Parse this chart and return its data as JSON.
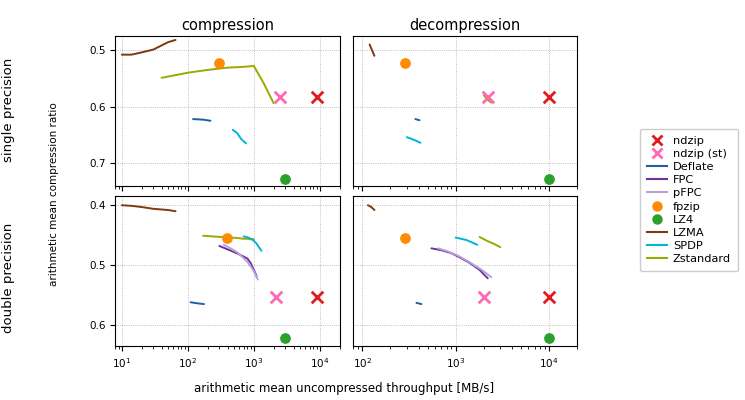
{
  "colors": {
    "ndzip": "#e31a1c",
    "ndzip_st": "#ff69b4",
    "Deflate": "#1f5fa6",
    "FPC": "#7030a0",
    "pFPC": "#b8a0d8",
    "fpzip": "#ff8c00",
    "LZ4": "#2ca02c",
    "LZMA": "#7b3a10",
    "SPDP": "#00b4d8",
    "Zstandard": "#9aaa00"
  },
  "sp_compress": {
    "LZMA": {
      "x": [
        10,
        14,
        20,
        30,
        50,
        65
      ],
      "y": [
        0.508,
        0.508,
        0.504,
        0.499,
        0.486,
        0.482
      ]
    },
    "Zstandard": {
      "x": [
        40,
        60,
        100,
        200,
        400,
        600,
        800,
        1000,
        1400,
        2000
      ],
      "y": [
        0.549,
        0.545,
        0.54,
        0.535,
        0.531,
        0.53,
        0.529,
        0.528,
        0.558,
        0.594
      ]
    },
    "Deflate": {
      "x": [
        120,
        170,
        220
      ],
      "y": [
        0.622,
        0.623,
        0.625
      ]
    },
    "SPDP": {
      "x": [
        480,
        560,
        640,
        760
      ],
      "y": [
        0.641,
        0.647,
        0.657,
        0.665
      ]
    },
    "fpzip": {
      "x": [
        300
      ],
      "y": [
        0.522
      ]
    },
    "LZ4": {
      "x": [
        3000
      ],
      "y": [
        0.728
      ]
    },
    "ndzip": {
      "x": [
        9000
      ],
      "y": [
        0.583
      ]
    },
    "ndzip_st": {
      "x": [
        2500
      ],
      "y": [
        0.583
      ]
    }
  },
  "sp_decompress": {
    "LZMA": {
      "x": [
        120,
        125,
        135
      ],
      "y": [
        0.49,
        0.497,
        0.51
      ]
    },
    "Zstandard": {
      "x": [
        2000,
        2200,
        2400
      ],
      "y": [
        0.58,
        0.588,
        0.593
      ]
    },
    "Deflate": {
      "x": [
        370,
        410
      ],
      "y": [
        0.622,
        0.624
      ]
    },
    "SPDP": {
      "x": [
        300,
        360,
        420
      ],
      "y": [
        0.654,
        0.659,
        0.664
      ]
    },
    "fpzip": {
      "x": [
        290
      ],
      "y": [
        0.522
      ]
    },
    "LZ4": {
      "x": [
        10000
      ],
      "y": [
        0.728
      ]
    },
    "ndzip": {
      "x": [
        10000
      ],
      "y": [
        0.583
      ]
    },
    "ndzip_st": {
      "x": [
        2200
      ],
      "y": [
        0.583
      ]
    }
  },
  "dp_compress": {
    "LZMA": {
      "x": [
        10,
        14,
        20,
        30,
        50,
        65
      ],
      "y": [
        0.4,
        0.401,
        0.403,
        0.406,
        0.408,
        0.41
      ]
    },
    "Zstandard": {
      "x": [
        170,
        230,
        320,
        450,
        600,
        700,
        800,
        900,
        1000
      ],
      "y": [
        0.451,
        0.452,
        0.453,
        0.454,
        0.455,
        0.456,
        0.456,
        0.457,
        0.457
      ]
    },
    "FPC": {
      "x": [
        300,
        350,
        450,
        600,
        800,
        900,
        1000,
        1100
      ],
      "y": [
        0.468,
        0.471,
        0.476,
        0.482,
        0.489,
        0.497,
        0.508,
        0.518
      ]
    },
    "pFPC": {
      "x": [
        350,
        430,
        550,
        680,
        820,
        950,
        1050,
        1150
      ],
      "y": [
        0.466,
        0.471,
        0.478,
        0.487,
        0.496,
        0.506,
        0.515,
        0.524
      ]
    },
    "Deflate": {
      "x": [
        110,
        145,
        175
      ],
      "y": [
        0.562,
        0.564,
        0.565
      ]
    },
    "SPDP": {
      "x": [
        700,
        820,
        950,
        1100,
        1300
      ],
      "y": [
        0.452,
        0.454,
        0.457,
        0.464,
        0.476
      ]
    },
    "fpzip": {
      "x": [
        390
      ],
      "y": [
        0.454
      ]
    },
    "LZ4": {
      "x": [
        3000
      ],
      "y": [
        0.622
      ]
    },
    "ndzip": {
      "x": [
        9000
      ],
      "y": [
        0.553
      ]
    },
    "ndzip_st": {
      "x": [
        2200
      ],
      "y": [
        0.553
      ]
    }
  },
  "dp_decompress": {
    "LZMA": {
      "x": [
        115,
        125,
        135
      ],
      "y": [
        0.4,
        0.403,
        0.408
      ]
    },
    "Zstandard": {
      "x": [
        1800,
        2200,
        2600,
        3000
      ],
      "y": [
        0.453,
        0.46,
        0.465,
        0.47
      ]
    },
    "FPC": {
      "x": [
        550,
        700,
        900,
        1100,
        1400,
        1800,
        2200
      ],
      "y": [
        0.472,
        0.475,
        0.48,
        0.487,
        0.496,
        0.508,
        0.522
      ]
    },
    "pFPC": {
      "x": [
        650,
        820,
        1050,
        1400,
        1900,
        2400
      ],
      "y": [
        0.472,
        0.477,
        0.484,
        0.495,
        0.508,
        0.52
      ]
    },
    "Deflate": {
      "x": [
        380,
        430
      ],
      "y": [
        0.563,
        0.565
      ]
    },
    "SPDP": {
      "x": [
        1000,
        1300,
        1700
      ],
      "y": [
        0.454,
        0.458,
        0.466
      ]
    },
    "fpzip": {
      "x": [
        290
      ],
      "y": [
        0.454
      ]
    },
    "LZ4": {
      "x": [
        10000
      ],
      "y": [
        0.622
      ]
    },
    "ndzip": {
      "x": [
        10000
      ],
      "y": [
        0.553
      ]
    },
    "ndzip_st": {
      "x": [
        2000
      ],
      "y": [
        0.553
      ]
    }
  },
  "sp_ylim": [
    0.74,
    0.475
  ],
  "dp_ylim": [
    0.635,
    0.385
  ],
  "xlim_compress": [
    8,
    20000
  ],
  "xlim_decompress": [
    80,
    20000
  ],
  "yticks_sp": [
    0.5,
    0.6,
    0.7
  ],
  "yticks_dp": [
    0.4,
    0.5,
    0.6
  ],
  "xlabel": "arithmetic mean uncompressed throughput [MB/s]",
  "ylabel": "arithmetic mean compression ratio",
  "col_labels": [
    "compression",
    "decompression"
  ],
  "row_labels": [
    "single precision",
    "double precision"
  ]
}
